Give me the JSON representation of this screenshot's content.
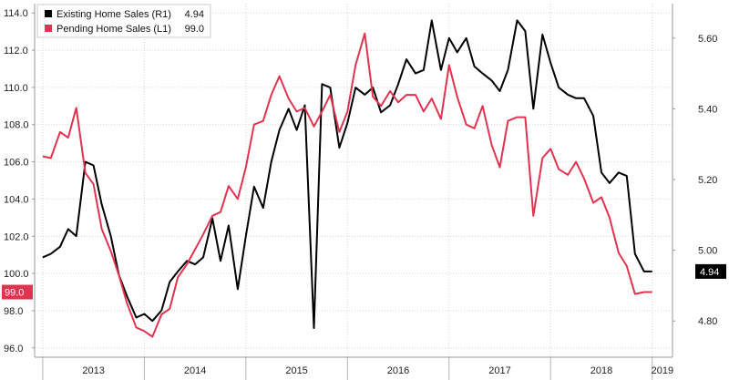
{
  "chart_data": {
    "type": "line",
    "title": "",
    "xlabel": "",
    "legend_position": "top-left",
    "grid": true,
    "x_axis": {
      "min": 2012.92,
      "max": 2019.2,
      "year_labels": [
        "2013",
        "2014",
        "2015",
        "2016",
        "2017",
        "2018",
        "2019"
      ],
      "year_label_positions": [
        2013.5,
        2014.5,
        2015.5,
        2016.5,
        2017.5,
        2018.5,
        2019.1
      ]
    },
    "y_left": {
      "min": 95.5,
      "max": 114.5,
      "ticks": [
        96.0,
        98.0,
        100.0,
        102.0,
        104.0,
        106.0,
        108.0,
        110.0,
        112.0,
        114.0
      ],
      "tick_labels": [
        "96.0",
        "98.0",
        "100.0",
        "102.0",
        "104.0",
        "106.0",
        "108.0",
        "110.0",
        "112.0",
        "114.0"
      ]
    },
    "y_right": {
      "min": 4.6975,
      "max": 5.6975,
      "ticks": [
        4.8,
        5.0,
        5.2,
        5.4,
        5.6
      ],
      "tick_labels": [
        "4.80",
        "5.00",
        "5.20",
        "5.40",
        "5.60"
      ]
    },
    "series": [
      {
        "name": "Existing Home Sales (R1)",
        "legend_value": "4.94",
        "axis": "right",
        "color": "#000000",
        "last_value_label": "4.94",
        "x": [
          2013.0,
          2013.08,
          2013.17,
          2013.25,
          2013.33,
          2013.42,
          2013.5,
          2013.58,
          2013.67,
          2013.75,
          2013.83,
          2013.92,
          2014.0,
          2014.08,
          2014.17,
          2014.25,
          2014.33,
          2014.42,
          2014.5,
          2014.58,
          2014.67,
          2014.75,
          2014.83,
          2014.92,
          2015.0,
          2015.08,
          2015.17,
          2015.25,
          2015.33,
          2015.42,
          2015.5,
          2015.58,
          2015.67,
          2015.75,
          2015.83,
          2015.92,
          2016.0,
          2016.08,
          2016.17,
          2016.25,
          2016.33,
          2016.42,
          2016.5,
          2016.58,
          2016.67,
          2016.75,
          2016.83,
          2016.92,
          2017.0,
          2017.08,
          2017.17,
          2017.25,
          2017.33,
          2017.42,
          2017.5,
          2017.58,
          2017.67,
          2017.75,
          2017.83,
          2017.92,
          2018.0,
          2018.08,
          2018.17,
          2018.25,
          2018.33,
          2018.42,
          2018.5,
          2018.58,
          2018.67,
          2018.75,
          2018.83,
          2018.92,
          2019.0
        ],
        "values": [
          4.98,
          4.99,
          5.01,
          5.06,
          5.04,
          5.25,
          5.24,
          5.13,
          5.04,
          4.93,
          4.87,
          4.81,
          4.82,
          4.8,
          4.83,
          4.91,
          4.94,
          4.97,
          4.96,
          4.98,
          5.09,
          4.97,
          5.07,
          4.89,
          5.04,
          5.18,
          5.12,
          5.25,
          5.34,
          5.4,
          5.34,
          5.41,
          4.78,
          5.47,
          5.46,
          5.29,
          5.36,
          5.46,
          5.44,
          5.46,
          5.39,
          5.41,
          5.47,
          5.54,
          5.5,
          5.51,
          5.65,
          5.51,
          5.6,
          5.56,
          5.6,
          5.52,
          5.5,
          5.48,
          5.45,
          5.51,
          5.65,
          5.62,
          5.4,
          5.61,
          5.53,
          5.46,
          5.44,
          5.43,
          5.43,
          5.38,
          5.22,
          5.19,
          5.22,
          5.21,
          4.99,
          4.94,
          4.94
        ]
      },
      {
        "name": "Pending Home Sales (L1)",
        "legend_value": "99.0",
        "axis": "left",
        "color": "#e0334f",
        "last_value_label": "99.0",
        "x": [
          2013.0,
          2013.08,
          2013.17,
          2013.25,
          2013.33,
          2013.42,
          2013.5,
          2013.58,
          2013.67,
          2013.75,
          2013.83,
          2013.92,
          2014.0,
          2014.08,
          2014.17,
          2014.25,
          2014.33,
          2014.42,
          2014.5,
          2014.58,
          2014.67,
          2014.75,
          2014.83,
          2014.92,
          2015.0,
          2015.08,
          2015.17,
          2015.25,
          2015.33,
          2015.42,
          2015.5,
          2015.58,
          2015.67,
          2015.75,
          2015.83,
          2015.92,
          2016.0,
          2016.08,
          2016.17,
          2016.25,
          2016.33,
          2016.42,
          2016.5,
          2016.58,
          2016.67,
          2016.75,
          2016.83,
          2016.92,
          2017.0,
          2017.08,
          2017.17,
          2017.25,
          2017.33,
          2017.42,
          2017.5,
          2017.58,
          2017.67,
          2017.75,
          2017.83,
          2017.92,
          2018.0,
          2018.08,
          2018.17,
          2018.25,
          2018.33,
          2018.42,
          2018.5,
          2018.58,
          2018.67,
          2018.75,
          2018.83,
          2018.92,
          2019.0
        ],
        "values": [
          106.3,
          106.2,
          107.6,
          107.3,
          108.9,
          105.4,
          104.8,
          102.4,
          101.2,
          99.9,
          98.4,
          97.1,
          96.9,
          96.6,
          97.8,
          98.1,
          99.8,
          100.5,
          101.3,
          102.1,
          103.1,
          103.3,
          104.7,
          104.0,
          105.7,
          108.0,
          108.2,
          109.6,
          110.6,
          109.4,
          108.7,
          108.9,
          107.9,
          108.7,
          109.6,
          107.6,
          108.7,
          111.2,
          112.9,
          109.5,
          109.0,
          109.8,
          109.2,
          109.6,
          109.6,
          108.7,
          109.4,
          108.3,
          111.2,
          109.5,
          108.0,
          107.8,
          109.0,
          106.9,
          105.7,
          108.2,
          108.4,
          108.4,
          103.1,
          106.2,
          106.7,
          105.6,
          105.3,
          106.0,
          105.1,
          103.8,
          104.1,
          103.0,
          101.1,
          100.4,
          98.9,
          99.0,
          99.0
        ]
      }
    ]
  }
}
